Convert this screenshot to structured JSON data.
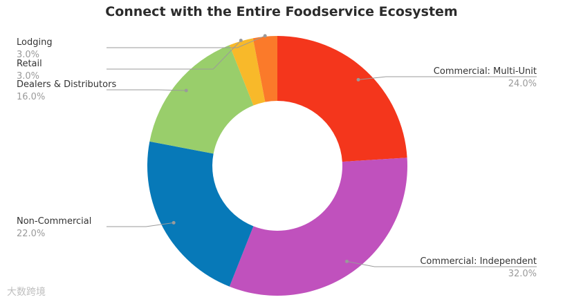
{
  "chart_data": {
    "type": "pie",
    "donut": true,
    "title": "Connect with the Entire Foodservice Ecosystem",
    "slices": [
      {
        "label": "Commercial: Multi-Unit",
        "value": 24.0,
        "pct_label": "24.0%",
        "color": "#f4361c"
      },
      {
        "label": "Commercial: Independent",
        "value": 32.0,
        "pct_label": "32.0%",
        "color": "#c051bd"
      },
      {
        "label": "Non-Commercial",
        "value": 22.0,
        "pct_label": "22.0%",
        "color": "#0779b8"
      },
      {
        "label": "Dealers & Distributors",
        "value": 16.0,
        "pct_label": "16.0%",
        "color": "#99ce6b"
      },
      {
        "label": "Retail",
        "value": 3.0,
        "pct_label": "3.0%",
        "color": "#f8b92a"
      },
      {
        "label": "Lodging",
        "value": 3.0,
        "pct_label": "3.0%",
        "color": "#fb7a2a"
      }
    ]
  },
  "watermark": "大数跨境"
}
